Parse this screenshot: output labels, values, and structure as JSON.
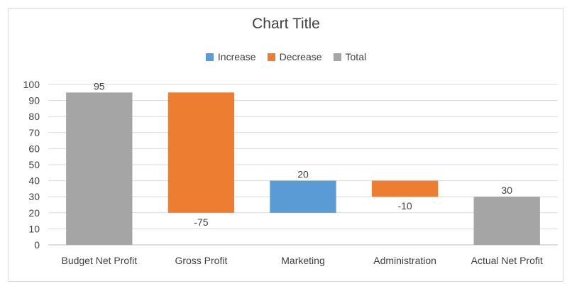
{
  "chart_data": {
    "type": "bar",
    "subtype": "waterfall",
    "title": "Chart Title",
    "legend": {
      "position": "top",
      "entries": [
        {
          "name": "Increase",
          "color": "#5b9bd5"
        },
        {
          "name": "Decrease",
          "color": "#ed7d31"
        },
        {
          "name": "Total",
          "color": "#a5a5a5"
        }
      ]
    },
    "categories": [
      "Budget Net Profit",
      "Gross Profit",
      "Marketing",
      "Administration",
      "Actual Net Profit"
    ],
    "values": [
      95,
      -75,
      20,
      -10,
      30
    ],
    "data_labels": [
      "95",
      "-75",
      "20",
      "-10",
      "30"
    ],
    "kinds": [
      "total",
      "decrease",
      "increase",
      "decrease",
      "total"
    ],
    "ylim": [
      0,
      100
    ],
    "yticks": [
      0,
      10,
      20,
      30,
      40,
      50,
      60,
      70,
      80,
      90,
      100
    ],
    "grid": true,
    "xlabel": "",
    "ylabel": ""
  }
}
